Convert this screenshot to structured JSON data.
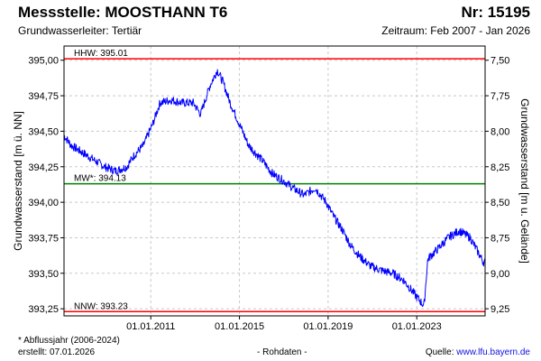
{
  "header": {
    "title": "Messstelle: MOOSTHANN T6",
    "nr": "Nr: 15195",
    "subtitle": "Grundwasserleiter: Tertiär",
    "period": "Zeitraum: Feb 2007 - Jan 2026"
  },
  "footer": {
    "footnote": "* Abflussjahr (2006-2024)",
    "created": "erstellt:  07.01.2026",
    "data_type": "- Rohdaten -",
    "source_label": "Quelle: ",
    "source_url": "www.lfu.bayern.de"
  },
  "colors": {
    "series": "#0000ff",
    "hhw": "#ff0000",
    "nnw": "#ff0000",
    "mw": "#008000",
    "grid": "#c8c8c8"
  },
  "chart_data": {
    "type": "line",
    "ylabel_left": "Grundwasserstand [m ü. NN]",
    "ylabel_right": "Grundwasserstand [m u. Gelände]",
    "ylim": [
      393.2,
      395.1
    ],
    "xlim": [
      "2007-02-01",
      "2026-01-31"
    ],
    "left_ticks": [
      "395,00",
      "394,75",
      "394,50",
      "394,25",
      "394,00",
      "393,75",
      "393,50",
      "393,25"
    ],
    "left_tick_values": [
      395.0,
      394.75,
      394.5,
      394.25,
      394.0,
      393.75,
      393.5,
      393.25
    ],
    "right_ticks": [
      "7,50",
      "7,75",
      "8,00",
      "8,25",
      "8,50",
      "8,75",
      "9,00",
      "9,25"
    ],
    "right_tick_values": [
      7.5,
      7.75,
      8.0,
      8.25,
      8.5,
      8.75,
      9.0,
      9.25
    ],
    "ground_level": 402.5,
    "x_ticks": [
      "01.01.2011",
      "01.01.2015",
      "01.01.2019",
      "01.01.2023"
    ],
    "x_tick_dates": [
      "2011-01-01",
      "2015-01-01",
      "2019-01-01",
      "2023-01-01"
    ],
    "reference_lines": [
      {
        "label": "HHW: 395.01",
        "value": 395.01
      },
      {
        "label": "MW*: 394.13",
        "value": 394.13
      },
      {
        "label": "NNW: 393.23",
        "value": 393.23
      }
    ],
    "grid": true,
    "series": [
      {
        "x": [
          "2007-02-01",
          "2007-06-01",
          "2007-12-01",
          "2008-06-01",
          "2008-12-01",
          "2009-06-01",
          "2009-12-01",
          "2010-04-01",
          "2010-09-01",
          "2011-02-01",
          "2011-06-01",
          "2011-12-01",
          "2012-06-01",
          "2012-12-01",
          "2013-04-01",
          "2013-09-01",
          "2014-01-01",
          "2014-04-01",
          "2014-08-01",
          "2015-01-01",
          "2015-06-01",
          "2016-01-01",
          "2016-07-01",
          "2017-01-01",
          "2017-06-01",
          "2017-12-01",
          "2018-06-01",
          "2018-12-01",
          "2019-04-01",
          "2019-09-01",
          "2020-01-01",
          "2020-06-01",
          "2020-12-01",
          "2021-06-01",
          "2021-12-01",
          "2022-06-01",
          "2022-12-01",
          "2023-05-01",
          "2023-07-01",
          "2024-01-01",
          "2024-06-01",
          "2024-12-01",
          "2025-06-01",
          "2026-01-01"
        ],
        "y": [
          394.47,
          394.4,
          394.35,
          394.3,
          394.25,
          394.22,
          394.25,
          394.33,
          394.4,
          394.55,
          394.7,
          394.72,
          394.7,
          394.7,
          394.62,
          394.82,
          394.93,
          394.85,
          394.7,
          394.55,
          394.4,
          394.3,
          394.2,
          394.15,
          394.1,
          394.05,
          394.1,
          394.0,
          393.9,
          393.8,
          393.7,
          393.62,
          393.55,
          393.52,
          393.5,
          393.45,
          393.35,
          393.27,
          393.6,
          393.68,
          393.75,
          393.8,
          393.75,
          393.58
        ]
      }
    ]
  }
}
